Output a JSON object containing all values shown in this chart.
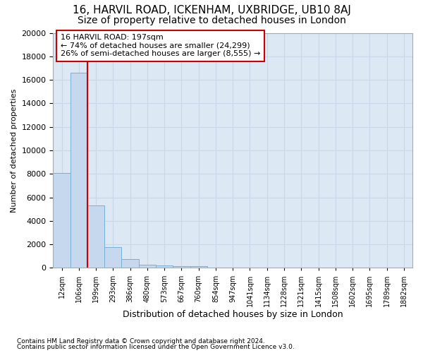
{
  "title1": "16, HARVIL ROAD, ICKENHAM, UXBRIDGE, UB10 8AJ",
  "title2": "Size of property relative to detached houses in London",
  "xlabel": "Distribution of detached houses by size in London",
  "ylabel": "Number of detached properties",
  "footnote1": "Contains HM Land Registry data © Crown copyright and database right 2024.",
  "footnote2": "Contains public sector information licensed under the Open Government Licence v3.0.",
  "bin_labels": [
    "12sqm",
    "106sqm",
    "199sqm",
    "293sqm",
    "386sqm",
    "480sqm",
    "573sqm",
    "667sqm",
    "760sqm",
    "854sqm",
    "947sqm",
    "1041sqm",
    "1134sqm",
    "1228sqm",
    "1321sqm",
    "1415sqm",
    "1508sqm",
    "1602sqm",
    "1695sqm",
    "1789sqm",
    "1882sqm"
  ],
  "bar_heights": [
    8100,
    16600,
    5300,
    1750,
    750,
    280,
    230,
    150,
    130,
    0,
    0,
    0,
    0,
    0,
    0,
    0,
    0,
    0,
    0,
    0,
    0
  ],
  "bar_color": "#c5d8ee",
  "bar_edge_color": "#7aaed4",
  "vline_color": "#cc0000",
  "annotation_line1": "16 HARVIL ROAD: 197sqm",
  "annotation_line2": "← 74% of detached houses are smaller (24,299)",
  "annotation_line3": "26% of semi-detached houses are larger (8,555) →",
  "annotation_box_color": "#ffffff",
  "annotation_border_color": "#cc0000",
  "ylim": [
    0,
    20000
  ],
  "yticks": [
    0,
    2000,
    4000,
    6000,
    8000,
    10000,
    12000,
    14000,
    16000,
    18000,
    20000
  ],
  "grid_color": "#c8d8e8",
  "bg_color": "#dce8f4",
  "title1_fontsize": 11,
  "title2_fontsize": 10
}
